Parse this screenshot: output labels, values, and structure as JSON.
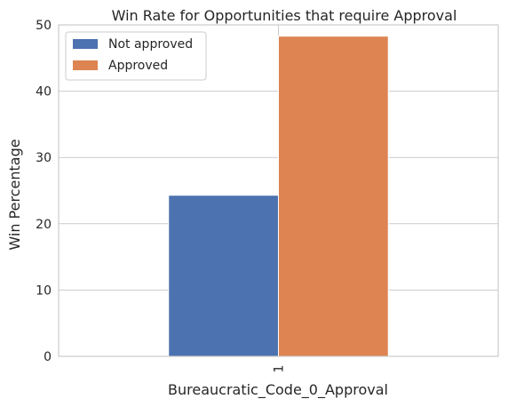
{
  "chart_data": {
    "type": "bar",
    "title": "Win Rate for Opportunities that require Approval",
    "xlabel": "Bureaucratic_Code_0_Approval",
    "ylabel": "Win Percentage",
    "categories": [
      "1"
    ],
    "series": [
      {
        "name": "Not approved",
        "values": [
          24.3
        ],
        "color": "#4c72b0"
      },
      {
        "name": "Approved",
        "values": [
          48.3
        ],
        "color": "#dd8452"
      }
    ],
    "ylim": [
      0,
      50
    ],
    "yticks": [
      0,
      10,
      20,
      30,
      40,
      50
    ],
    "grid": true,
    "legend_position": "top-left"
  }
}
